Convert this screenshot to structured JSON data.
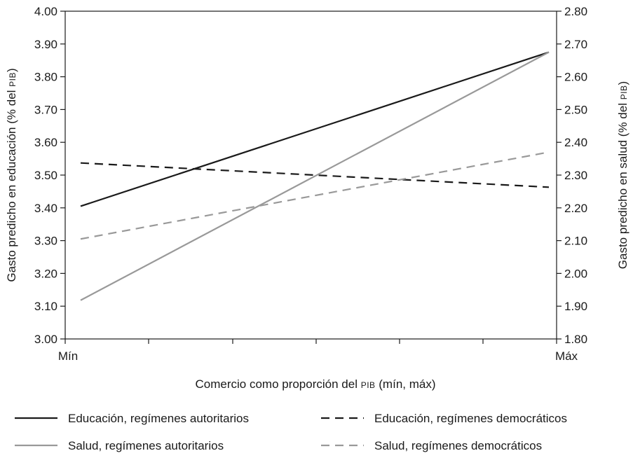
{
  "chart_data": {
    "type": "line",
    "x": {
      "categories": [
        "Mín",
        "Máx"
      ],
      "label_prefix": "Comercio como proporción del ",
      "label_sc": "PIB",
      "label_suffix": " (mín, máx)"
    },
    "y_left": {
      "label_prefix": "Gasto predicho en educación (% del ",
      "label_sc": "PIB",
      "label_suffix": ")",
      "ylim": [
        3.0,
        4.0
      ],
      "ticks": [
        "3.00",
        "3.10",
        "3.20",
        "3.30",
        "3.40",
        "3.50",
        "3.60",
        "3.70",
        "3.80",
        "3.90",
        "4.00"
      ]
    },
    "y_right": {
      "label_prefix": "Gasto predicho en salud (% del ",
      "label_sc": "PIB",
      "label_suffix": ")",
      "ylim": [
        1.8,
        2.8
      ],
      "ticks": [
        "1.80",
        "1.90",
        "2.00",
        "2.10",
        "2.20",
        "2.30",
        "2.40",
        "2.50",
        "2.60",
        "2.70",
        "2.80"
      ]
    },
    "grid": false,
    "legend_position": "bottom",
    "series": [
      {
        "name": "Educación, regímenes autoritarios",
        "axis": "left",
        "values": [
          3.405,
          3.875
        ],
        "color": "#1a1a1a",
        "dash": "solid"
      },
      {
        "name": "Educación, regímenes democráticos",
        "axis": "left",
        "values": [
          3.537,
          3.463
        ],
        "color": "#1a1a1a",
        "dash": "dashed"
      },
      {
        "name": "Salud, regímenes autoritarios",
        "axis": "right",
        "values": [
          1.918,
          2.675
        ],
        "color": "#999999",
        "dash": "solid"
      },
      {
        "name": "Salud, regímenes democráticos",
        "axis": "right",
        "values": [
          2.105,
          2.37
        ],
        "color": "#999999",
        "dash": "dashed"
      }
    ]
  }
}
